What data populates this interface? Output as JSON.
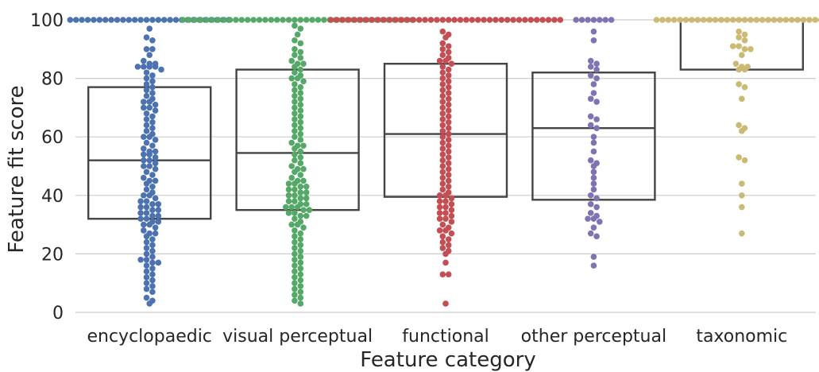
{
  "chart_data": {
    "type": "swarm-box",
    "title": "",
    "xlabel": "Feature category",
    "ylabel": "Feature fit score",
    "ylim": [
      -3,
      105
    ],
    "yticks": [
      0,
      20,
      40,
      60,
      80,
      100
    ],
    "grid": "horizontal",
    "categories": [
      "encyclopaedic",
      "visual perceptual",
      "functional",
      "other perceptual",
      "taxonomic"
    ],
    "colors": [
      "#4c72b0",
      "#55a868",
      "#c44e52",
      "#8172b2",
      "#ccb974"
    ],
    "box_stats": [
      {
        "category": "encyclopaedic",
        "q1": 32,
        "median": 52,
        "q3": 77
      },
      {
        "category": "visual perceptual",
        "q1": 35,
        "median": 54.5,
        "q3": 83
      },
      {
        "category": "functional",
        "q1": 39.5,
        "median": 61,
        "q3": 85
      },
      {
        "category": "other perceptual",
        "q1": 38.5,
        "median": 63,
        "q3": 82
      },
      {
        "category": "taxonomic",
        "q1": 83,
        "median": 100,
        "q3": 100
      }
    ],
    "points": {
      "encyclopaedic": [
        100,
        100,
        100,
        100,
        100,
        100,
        100,
        100,
        100,
        100,
        100,
        100,
        100,
        100,
        100,
        100,
        100,
        100,
        100,
        100,
        100,
        100,
        100,
        100,
        100,
        100,
        100,
        100,
        97,
        94,
        93,
        90,
        90,
        88,
        86,
        85,
        85,
        84,
        84,
        84,
        84,
        83,
        82,
        81,
        80,
        79,
        78,
        77,
        76,
        75,
        74,
        73,
        72,
        72,
        71,
        70,
        70,
        69,
        68,
        67,
        66,
        65,
        64,
        63,
        62,
        61,
        60,
        60,
        59,
        58,
        57,
        56,
        55,
        55,
        54,
        54,
        53,
        52,
        52,
        51,
        50,
        50,
        49,
        48,
        47,
        46,
        45,
        45,
        44,
        43,
        42,
        41,
        40,
        40,
        39,
        38,
        38,
        37,
        37,
        36,
        36,
        35,
        35,
        34,
        34,
        33,
        33,
        32,
        32,
        31,
        31,
        30,
        30,
        29,
        28,
        27,
        27,
        26,
        25,
        24,
        23,
        22,
        21,
        20,
        19,
        18,
        18,
        17,
        17,
        16,
        15,
        14,
        13,
        12,
        11,
        10,
        9,
        8,
        7,
        5,
        4,
        3
      ],
      "visual perceptual": [
        100,
        100,
        100,
        100,
        100,
        100,
        100,
        100,
        100,
        100,
        100,
        100,
        100,
        100,
        100,
        100,
        100,
        100,
        100,
        100,
        100,
        100,
        100,
        100,
        100,
        100,
        100,
        100,
        100,
        100,
        100,
        100,
        100,
        100,
        100,
        100,
        100,
        100,
        100,
        100,
        98,
        97,
        95,
        93,
        92,
        90,
        89,
        88,
        87,
        86,
        85,
        85,
        84,
        83,
        82,
        81,
        80,
        80,
        79,
        78,
        77,
        76,
        75,
        74,
        73,
        72,
        71,
        70,
        69,
        68,
        67,
        66,
        65,
        64,
        63,
        62,
        61,
        60,
        59,
        58,
        57,
        57,
        56,
        55,
        54,
        53,
        52,
        51,
        50,
        49,
        49,
        48,
        47,
        46,
        45,
        45,
        44,
        44,
        43,
        43,
        42,
        42,
        41,
        41,
        40,
        40,
        39,
        39,
        38,
        38,
        37,
        37,
        36,
        36,
        36,
        35,
        35,
        34,
        34,
        33,
        33,
        32,
        31,
        30,
        30,
        29,
        28,
        27,
        26,
        25,
        24,
        23,
        22,
        21,
        20,
        19,
        18,
        17,
        16,
        15,
        14,
        13,
        12,
        11,
        10,
        9,
        8,
        7,
        6,
        5,
        4,
        3
      ],
      "functional": [
        100,
        100,
        100,
        100,
        100,
        100,
        100,
        100,
        100,
        100,
        100,
        100,
        100,
        100,
        100,
        100,
        100,
        100,
        100,
        100,
        100,
        100,
        100,
        100,
        100,
        100,
        100,
        100,
        100,
        100,
        100,
        100,
        100,
        100,
        100,
        100,
        100,
        100,
        100,
        100,
        96,
        95,
        94,
        92,
        91,
        90,
        89,
        88,
        87,
        86,
        86,
        85,
        84,
        83,
        82,
        81,
        80,
        79,
        78,
        77,
        76,
        75,
        74,
        73,
        72,
        71,
        70,
        69,
        68,
        67,
        66,
        65,
        64,
        63,
        62,
        61,
        60,
        59,
        58,
        57,
        56,
        55,
        54,
        53,
        52,
        51,
        50,
        49,
        48,
        47,
        46,
        45,
        44,
        43,
        42,
        41,
        40,
        40,
        39,
        38,
        38,
        37,
        36,
        36,
        35,
        34,
        34,
        33,
        32,
        32,
        31,
        30,
        29,
        28,
        28,
        27,
        26,
        25,
        24,
        23,
        22,
        21,
        20,
        17,
        13,
        13,
        3
      ],
      "other perceptual": [
        100,
        100,
        100,
        100,
        100,
        100,
        100,
        96,
        93,
        86,
        85,
        84,
        83,
        81,
        80,
        78,
        75,
        73,
        72,
        67,
        66,
        64,
        63,
        60,
        58,
        55,
        52,
        51,
        50,
        48,
        46,
        44,
        42,
        40,
        39,
        37,
        36,
        34,
        33,
        32,
        32,
        31,
        29,
        27,
        26,
        19,
        16
      ],
      "taxonomic": [
        100,
        100,
        100,
        100,
        100,
        100,
        100,
        100,
        100,
        100,
        100,
        100,
        100,
        100,
        100,
        100,
        100,
        100,
        100,
        100,
        100,
        100,
        100,
        100,
        100,
        100,
        100,
        100,
        100,
        99,
        96,
        95,
        94,
        93,
        91,
        91,
        90,
        90,
        88,
        85,
        84,
        84,
        83,
        83,
        78,
        77,
        73,
        64,
        63,
        62,
        53,
        52,
        44,
        40,
        36,
        27
      ]
    }
  }
}
